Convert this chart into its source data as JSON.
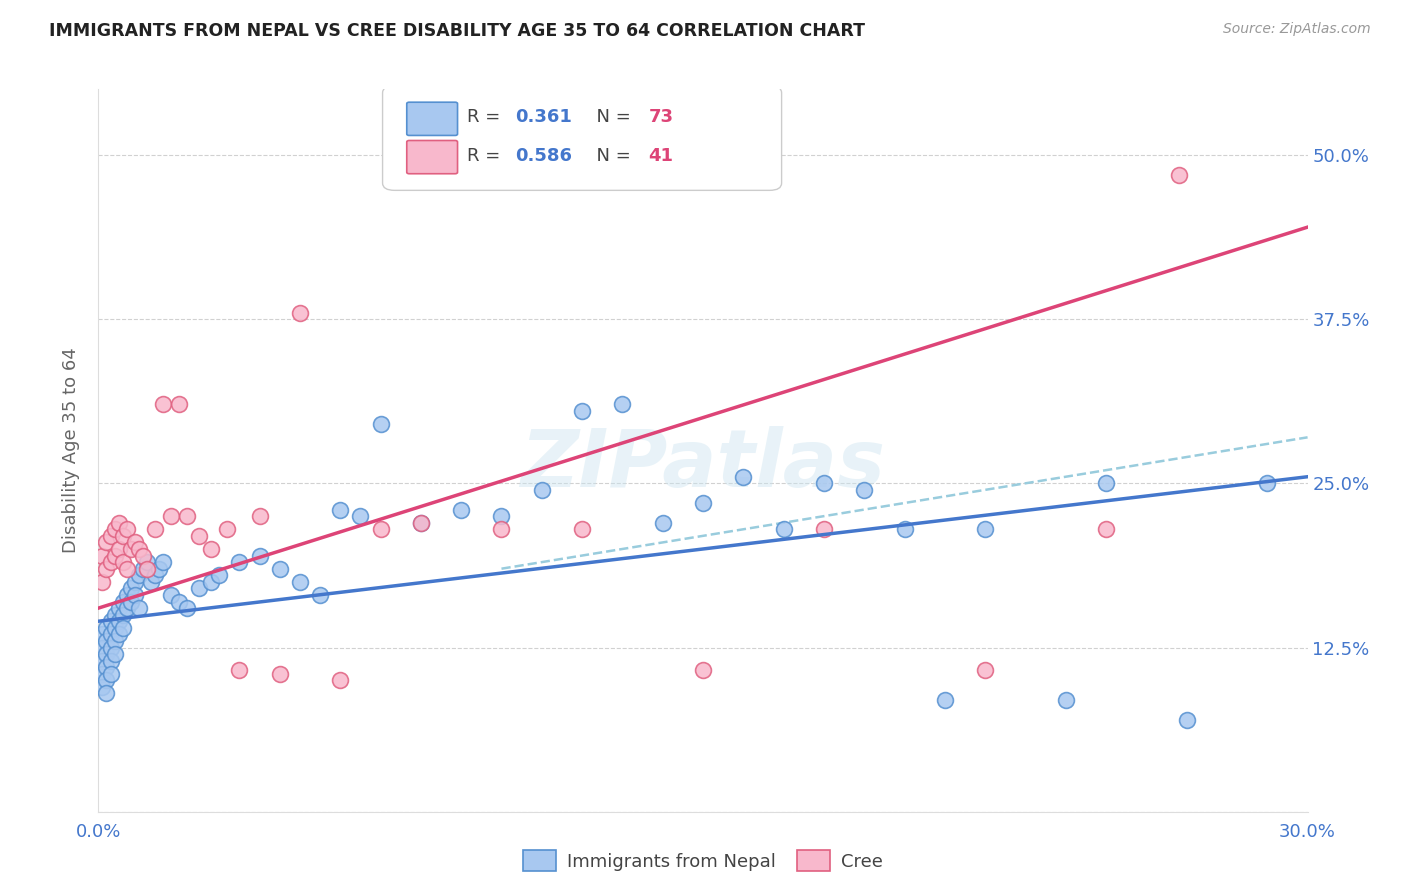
{
  "title": "IMMIGRANTS FROM NEPAL VS CREE DISABILITY AGE 35 TO 64 CORRELATION CHART",
  "source": "Source: ZipAtlas.com",
  "ylabel": "Disability Age 35 to 64",
  "xlim": [
    0.0,
    0.3
  ],
  "ylim": [
    0.0,
    0.55
  ],
  "xtick_positions": [
    0.0,
    0.05,
    0.1,
    0.15,
    0.2,
    0.25,
    0.3
  ],
  "xticklabels": [
    "0.0%",
    "",
    "",
    "",
    "",
    "",
    "30.0%"
  ],
  "ytick_positions": [
    0.0,
    0.125,
    0.25,
    0.375,
    0.5
  ],
  "ytick_labels": [
    "",
    "12.5%",
    "25.0%",
    "37.5%",
    "50.0%"
  ],
  "legend_r1": "0.361",
  "legend_n1": "73",
  "legend_r2": "0.586",
  "legend_n2": "41",
  "color_blue_fill": "#a8c8f0",
  "color_blue_edge": "#5590d0",
  "color_pink_fill": "#f8b8cc",
  "color_pink_edge": "#e06080",
  "line_blue": "#4477cc",
  "line_pink": "#dd4477",
  "line_dash": "#99ccdd",
  "watermark": "ZIPatlas",
  "nepal_x": [
    0.001,
    0.001,
    0.001,
    0.001,
    0.001,
    0.002,
    0.002,
    0.002,
    0.002,
    0.002,
    0.002,
    0.003,
    0.003,
    0.003,
    0.003,
    0.003,
    0.004,
    0.004,
    0.004,
    0.004,
    0.005,
    0.005,
    0.005,
    0.006,
    0.006,
    0.006,
    0.007,
    0.007,
    0.008,
    0.008,
    0.009,
    0.009,
    0.01,
    0.01,
    0.011,
    0.012,
    0.013,
    0.014,
    0.015,
    0.016,
    0.018,
    0.02,
    0.022,
    0.025,
    0.028,
    0.03,
    0.035,
    0.04,
    0.045,
    0.05,
    0.055,
    0.06,
    0.065,
    0.07,
    0.08,
    0.09,
    0.1,
    0.11,
    0.12,
    0.13,
    0.14,
    0.15,
    0.16,
    0.17,
    0.18,
    0.19,
    0.2,
    0.21,
    0.22,
    0.24,
    0.25,
    0.27,
    0.29
  ],
  "nepal_y": [
    0.135,
    0.125,
    0.115,
    0.105,
    0.095,
    0.14,
    0.13,
    0.12,
    0.11,
    0.1,
    0.09,
    0.145,
    0.135,
    0.125,
    0.115,
    0.105,
    0.15,
    0.14,
    0.13,
    0.12,
    0.155,
    0.145,
    0.135,
    0.16,
    0.15,
    0.14,
    0.165,
    0.155,
    0.17,
    0.16,
    0.175,
    0.165,
    0.18,
    0.155,
    0.185,
    0.19,
    0.175,
    0.18,
    0.185,
    0.19,
    0.165,
    0.16,
    0.155,
    0.17,
    0.175,
    0.18,
    0.19,
    0.195,
    0.185,
    0.175,
    0.165,
    0.23,
    0.225,
    0.295,
    0.22,
    0.23,
    0.225,
    0.245,
    0.305,
    0.31,
    0.22,
    0.235,
    0.255,
    0.215,
    0.25,
    0.245,
    0.215,
    0.085,
    0.215,
    0.085,
    0.25,
    0.07,
    0.25
  ],
  "cree_x": [
    0.001,
    0.001,
    0.002,
    0.002,
    0.003,
    0.003,
    0.004,
    0.004,
    0.005,
    0.005,
    0.006,
    0.006,
    0.007,
    0.007,
    0.008,
    0.009,
    0.01,
    0.011,
    0.012,
    0.014,
    0.016,
    0.018,
    0.02,
    0.022,
    0.025,
    0.028,
    0.032,
    0.035,
    0.04,
    0.045,
    0.05,
    0.06,
    0.07,
    0.08,
    0.1,
    0.12,
    0.15,
    0.18,
    0.22,
    0.25,
    0.268
  ],
  "cree_y": [
    0.195,
    0.175,
    0.205,
    0.185,
    0.21,
    0.19,
    0.215,
    0.195,
    0.22,
    0.2,
    0.21,
    0.19,
    0.215,
    0.185,
    0.2,
    0.205,
    0.2,
    0.195,
    0.185,
    0.215,
    0.31,
    0.225,
    0.31,
    0.225,
    0.21,
    0.2,
    0.215,
    0.108,
    0.225,
    0.105,
    0.38,
    0.1,
    0.215,
    0.22,
    0.215,
    0.215,
    0.108,
    0.215,
    0.108,
    0.215,
    0.485
  ],
  "nepal_line_x": [
    0.0,
    0.3
  ],
  "nepal_line_y": [
    0.145,
    0.255
  ],
  "cree_line_x": [
    0.0,
    0.3
  ],
  "cree_line_y": [
    0.155,
    0.445
  ],
  "dash_line_x": [
    0.1,
    0.3
  ],
  "dash_line_y": [
    0.185,
    0.285
  ]
}
